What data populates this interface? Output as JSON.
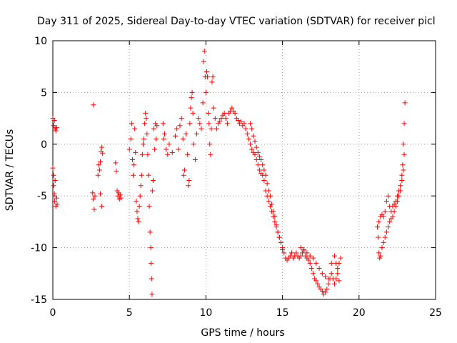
{
  "chart_data": {
    "type": "scatter",
    "title": "Day 311 of 2025, Sidereal Day-to-day VTEC variation (SDTVAR) for receiver picl",
    "xlabel": "GPS time / hours",
    "ylabel": "SDTVAR / TECUs",
    "xlim": [
      0,
      25
    ],
    "ylim": [
      -15,
      10
    ],
    "xticks": [
      0,
      5,
      10,
      15,
      20,
      25
    ],
    "yticks": [
      -15,
      -10,
      -5,
      0,
      5,
      10
    ],
    "grid": true,
    "marker": "plus",
    "color": "#ff0000",
    "series": [
      {
        "name": "SDTVAR",
        "points": [
          [
            0.0,
            2.5
          ],
          [
            0.05,
            1.8
          ],
          [
            0.1,
            2.3
          ],
          [
            0.15,
            1.5
          ],
          [
            0.2,
            1.3
          ],
          [
            0.25,
            1.6
          ],
          [
            0.0,
            -2.3
          ],
          [
            0.05,
            -3.0
          ],
          [
            0.05,
            -4.0
          ],
          [
            0.1,
            -4.8
          ],
          [
            0.12,
            -5.5
          ],
          [
            0.15,
            -3.5
          ],
          [
            0.2,
            -6.0
          ],
          [
            0.25,
            -5.2
          ],
          [
            0.28,
            -5.8
          ],
          [
            2.65,
            3.8
          ],
          [
            2.6,
            -4.7
          ],
          [
            2.65,
            -5.3
          ],
          [
            2.7,
            -6.3
          ],
          [
            2.75,
            -5.0
          ],
          [
            2.95,
            -3.0
          ],
          [
            3.0,
            -2.0
          ],
          [
            3.05,
            -2.5
          ],
          [
            3.1,
            -1.7
          ],
          [
            3.1,
            -4.8
          ],
          [
            3.2,
            -6.0
          ],
          [
            3.15,
            -0.7
          ],
          [
            3.2,
            -0.3
          ],
          [
            3.25,
            -0.9
          ],
          [
            4.1,
            -1.8
          ],
          [
            4.15,
            -2.6
          ],
          [
            4.2,
            -4.5
          ],
          [
            4.25,
            -5.0
          ],
          [
            4.3,
            -4.7
          ],
          [
            4.35,
            -5.3
          ],
          [
            4.4,
            -4.9
          ],
          [
            4.45,
            -5.2
          ],
          [
            5.0,
            -0.5
          ],
          [
            5.1,
            0.5
          ],
          [
            5.15,
            2.0
          ],
          [
            5.2,
            -1.5
          ],
          [
            5.25,
            -3.0
          ],
          [
            5.3,
            -2.0
          ],
          [
            5.35,
            1.5
          ],
          [
            5.4,
            -0.8
          ],
          [
            5.45,
            -5.5
          ],
          [
            5.5,
            -6.5
          ],
          [
            5.55,
            -7.2
          ],
          [
            5.6,
            -7.5
          ],
          [
            5.65,
            -6.0
          ],
          [
            5.7,
            -5.0
          ],
          [
            5.75,
            -4.0
          ],
          [
            5.8,
            -3.0
          ],
          [
            5.85,
            -1.0
          ],
          [
            5.9,
            0.0
          ],
          [
            5.95,
            0.5
          ],
          [
            6.0,
            2.0
          ],
          [
            6.05,
            3.0
          ],
          [
            6.1,
            2.5
          ],
          [
            6.15,
            1.0
          ],
          [
            6.2,
            -1.0
          ],
          [
            6.25,
            -3.0
          ],
          [
            6.3,
            -6.0
          ],
          [
            6.35,
            -8.5
          ],
          [
            6.4,
            -10.0
          ],
          [
            6.42,
            -11.5
          ],
          [
            6.45,
            -13.0
          ],
          [
            6.48,
            -14.5
          ],
          [
            6.5,
            -4.5
          ],
          [
            6.55,
            -3.5
          ],
          [
            6.6,
            1.5
          ],
          [
            6.65,
            -0.5
          ],
          [
            6.7,
            2.0
          ],
          [
            6.75,
            0.5
          ],
          [
            6.8,
            1.8
          ],
          [
            7.2,
            2.0
          ],
          [
            7.25,
            0.5
          ],
          [
            7.3,
            1.0
          ],
          [
            7.4,
            -0.5
          ],
          [
            7.5,
            -1.0
          ],
          [
            7.6,
            0.0
          ],
          [
            7.8,
            -0.8
          ],
          [
            8.0,
            0.8
          ],
          [
            8.1,
            1.5
          ],
          [
            8.2,
            -0.5
          ],
          [
            8.3,
            1.8
          ],
          [
            8.4,
            2.5
          ],
          [
            8.5,
            0.5
          ],
          [
            8.55,
            -3.0
          ],
          [
            8.6,
            -2.5
          ],
          [
            8.7,
            1.0
          ],
          [
            8.8,
            -1.0
          ],
          [
            8.85,
            -4.0
          ],
          [
            8.9,
            -3.5
          ],
          [
            8.95,
            2.0
          ],
          [
            9.0,
            3.5
          ],
          [
            9.05,
            4.5
          ],
          [
            9.1,
            5.0
          ],
          [
            9.15,
            3.0
          ],
          [
            9.2,
            0.0
          ],
          [
            9.3,
            -1.5
          ],
          [
            9.4,
            1.0
          ],
          [
            9.5,
            2.5
          ],
          [
            9.6,
            2.0
          ],
          [
            9.7,
            1.5
          ],
          [
            9.8,
            4.0
          ],
          [
            9.85,
            8.0
          ],
          [
            9.9,
            9.0
          ],
          [
            9.95,
            6.5
          ],
          [
            10.0,
            5.0
          ],
          [
            10.05,
            7.0
          ],
          [
            10.1,
            6.5
          ],
          [
            10.15,
            3.0
          ],
          [
            10.2,
            2.0
          ],
          [
            10.25,
            0.0
          ],
          [
            10.3,
            -1.0
          ],
          [
            10.35,
            1.5
          ],
          [
            10.4,
            6.0
          ],
          [
            10.45,
            6.5
          ],
          [
            10.5,
            3.5
          ],
          [
            10.6,
            2.5
          ],
          [
            10.7,
            1.5
          ],
          [
            10.8,
            2.0
          ],
          [
            10.9,
            2.2
          ],
          [
            11.0,
            2.5
          ],
          [
            11.1,
            2.8
          ],
          [
            11.2,
            3.0
          ],
          [
            11.3,
            2.5
          ],
          [
            11.4,
            2.0
          ],
          [
            11.5,
            3.0
          ],
          [
            11.6,
            3.2
          ],
          [
            11.7,
            3.5
          ],
          [
            11.8,
            3.2
          ],
          [
            11.9,
            3.0
          ],
          [
            12.0,
            2.5
          ],
          [
            12.1,
            2.3
          ],
          [
            12.2,
            2.0
          ],
          [
            12.3,
            2.2
          ],
          [
            12.4,
            1.8
          ],
          [
            12.5,
            2.0
          ],
          [
            12.6,
            1.5
          ],
          [
            12.7,
            1.0
          ],
          [
            12.8,
            0.5
          ],
          [
            12.9,
            0.0
          ],
          [
            13.0,
            -0.5
          ],
          [
            13.1,
            -0.8
          ],
          [
            13.2,
            -1.0
          ],
          [
            13.3,
            -1.5
          ],
          [
            13.4,
            -2.0
          ],
          [
            13.5,
            -2.5
          ],
          [
            13.6,
            -2.8
          ],
          [
            13.7,
            -3.0
          ],
          [
            13.8,
            -3.5
          ],
          [
            13.9,
            -4.5
          ],
          [
            14.0,
            -5.0
          ],
          [
            14.1,
            -5.5
          ],
          [
            14.2,
            -6.0
          ],
          [
            14.3,
            -6.5
          ],
          [
            14.4,
            -7.0
          ],
          [
            14.5,
            -7.5
          ],
          [
            14.6,
            -8.0
          ],
          [
            14.7,
            -8.5
          ],
          [
            14.8,
            -9.0
          ],
          [
            14.9,
            -9.5
          ],
          [
            15.0,
            -10.0
          ],
          [
            15.1,
            -10.5
          ],
          [
            15.2,
            -11.0
          ],
          [
            15.3,
            -11.2
          ],
          [
            15.4,
            -11.0
          ],
          [
            15.5,
            -10.8
          ],
          [
            15.6,
            -10.5
          ],
          [
            15.7,
            -11.0
          ],
          [
            15.8,
            -10.8
          ],
          [
            15.9,
            -10.5
          ],
          [
            16.0,
            -10.8
          ],
          [
            16.1,
            -11.0
          ],
          [
            16.2,
            -10.8
          ],
          [
            16.3,
            -10.5
          ],
          [
            16.4,
            -10.2
          ],
          [
            16.5,
            -10.8
          ],
          [
            16.6,
            -11.0
          ],
          [
            16.7,
            -11.2
          ],
          [
            16.8,
            -11.5
          ],
          [
            16.9,
            -12.0
          ],
          [
            17.0,
            -12.5
          ],
          [
            17.1,
            -13.0
          ],
          [
            17.2,
            -13.2
          ],
          [
            17.3,
            -13.5
          ],
          [
            17.4,
            -13.8
          ],
          [
            17.5,
            -14.0
          ],
          [
            17.6,
            -14.2
          ],
          [
            17.7,
            -14.5
          ],
          [
            17.8,
            -14.3
          ],
          [
            17.9,
            -14.0
          ],
          [
            18.0,
            -13.5
          ],
          [
            18.1,
            -13.0
          ],
          [
            18.2,
            -12.5
          ],
          [
            18.3,
            -13.0
          ],
          [
            18.4,
            -13.5
          ],
          [
            18.5,
            -13.0
          ],
          [
            18.6,
            -12.0
          ],
          [
            18.7,
            -11.5
          ],
          [
            18.8,
            -11.0
          ],
          [
            12.9,
            2.0
          ],
          [
            13.0,
            1.5
          ],
          [
            13.1,
            0.8
          ],
          [
            13.2,
            0.3
          ],
          [
            13.3,
            -0.3
          ],
          [
            13.4,
            -0.8
          ],
          [
            13.5,
            -1.2
          ],
          [
            13.6,
            -1.5
          ],
          [
            13.7,
            -2.0
          ],
          [
            13.8,
            -2.5
          ],
          [
            13.9,
            -3.0
          ],
          [
            14.0,
            -3.8
          ],
          [
            14.1,
            -4.5
          ],
          [
            14.2,
            -5.0
          ],
          [
            14.3,
            -5.8
          ],
          [
            14.4,
            -6.5
          ],
          [
            14.5,
            -7.0
          ],
          [
            14.6,
            -7.8
          ],
          [
            14.7,
            -8.5
          ],
          [
            14.8,
            -9.0
          ],
          [
            14.9,
            -9.5
          ],
          [
            15.0,
            -10.2
          ],
          [
            16.2,
            -10.0
          ],
          [
            16.4,
            -10.3
          ],
          [
            16.6,
            -10.5
          ],
          [
            16.8,
            -10.8
          ],
          [
            17.0,
            -11.0
          ],
          [
            17.2,
            -11.5
          ],
          [
            17.4,
            -12.0
          ],
          [
            17.6,
            -12.5
          ],
          [
            17.8,
            -12.8
          ],
          [
            18.0,
            -13.0
          ],
          [
            18.2,
            -11.5
          ],
          [
            18.4,
            -10.8
          ],
          [
            18.5,
            -11.5
          ],
          [
            18.6,
            -12.5
          ],
          [
            18.7,
            -13.2
          ],
          [
            21.2,
            -8.0
          ],
          [
            21.25,
            -9.0
          ],
          [
            21.3,
            -10.5
          ],
          [
            21.35,
            -11.0
          ],
          [
            21.4,
            -10.8
          ],
          [
            21.5,
            -10.0
          ],
          [
            21.6,
            -9.5
          ],
          [
            21.7,
            -9.0
          ],
          [
            21.8,
            -8.5
          ],
          [
            21.9,
            -8.0
          ],
          [
            22.0,
            -7.5
          ],
          [
            22.1,
            -7.2
          ],
          [
            22.2,
            -7.0
          ],
          [
            22.3,
            -6.5
          ],
          [
            22.4,
            -6.0
          ],
          [
            22.5,
            -5.5
          ],
          [
            22.6,
            -5.0
          ],
          [
            22.7,
            -4.5
          ],
          [
            22.8,
            -3.5
          ],
          [
            22.85,
            -2.0
          ],
          [
            22.9,
            0.0
          ],
          [
            22.95,
            2.0
          ],
          [
            23.0,
            4.0
          ],
          [
            21.3,
            -7.5
          ],
          [
            21.4,
            -7.0
          ],
          [
            21.5,
            -6.8
          ],
          [
            21.6,
            -7.0
          ],
          [
            21.7,
            -6.5
          ],
          [
            21.8,
            -5.5
          ],
          [
            21.9,
            -5.0
          ],
          [
            22.0,
            -6.0
          ],
          [
            22.1,
            -6.5
          ],
          [
            22.2,
            -6.0
          ],
          [
            22.3,
            -5.8
          ],
          [
            22.4,
            -5.5
          ],
          [
            22.5,
            -5.0
          ],
          [
            22.6,
            -4.5
          ],
          [
            22.7,
            -4.0
          ],
          [
            22.8,
            -3.0
          ],
          [
            22.9,
            -2.5
          ],
          [
            22.95,
            -1.0
          ]
        ]
      }
    ]
  }
}
